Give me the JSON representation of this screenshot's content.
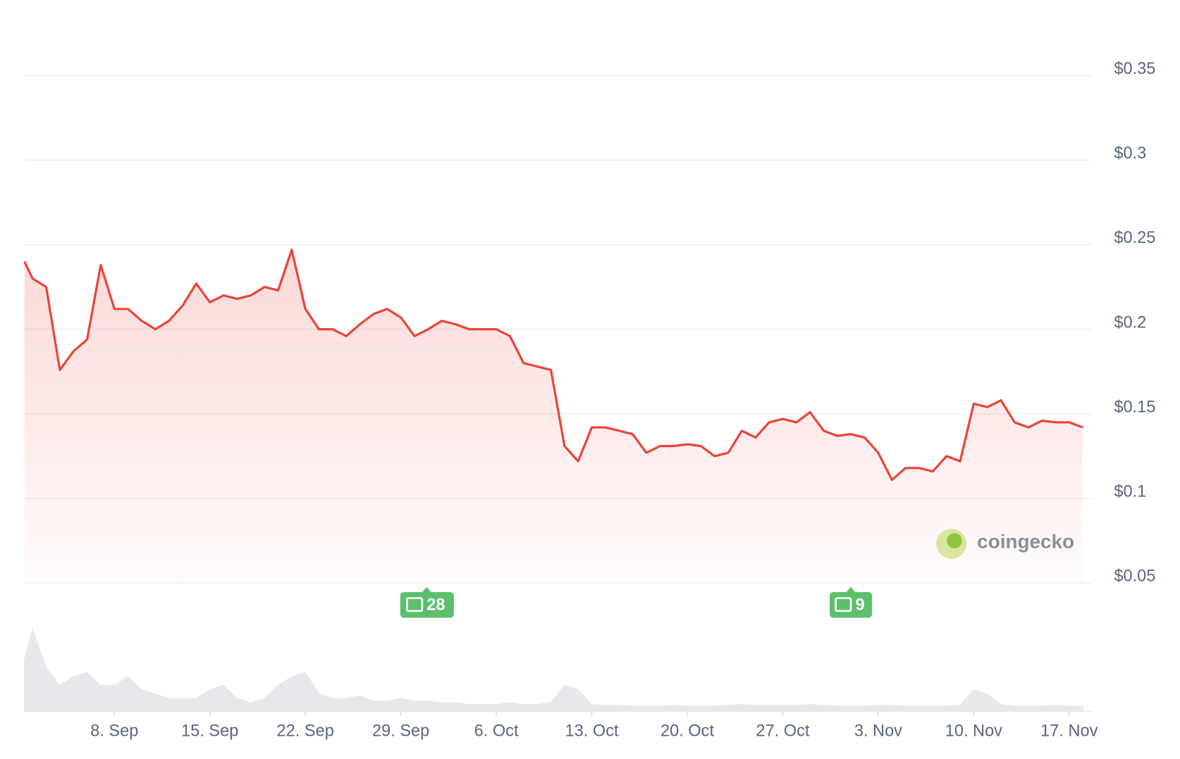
{
  "chart_data": {
    "type": "line",
    "categories": [
      null,
      null,
      null,
      null,
      null,
      null,
      null,
      "8. Sep",
      null,
      null,
      null,
      null,
      null,
      null,
      "15. Sep",
      null,
      null,
      null,
      null,
      null,
      null,
      "22. Sep",
      null,
      null,
      null,
      null,
      null,
      null,
      "29. Sep",
      null,
      null,
      null,
      null,
      null,
      null,
      "6. Oct",
      null,
      null,
      null,
      null,
      null,
      null,
      "13. Oct",
      null,
      null,
      null,
      null,
      null,
      null,
      "20. Oct",
      null,
      null,
      null,
      null,
      null,
      null,
      "27. Oct",
      null,
      null,
      null,
      null,
      null,
      null,
      "3. Nov",
      null,
      null,
      null,
      null,
      null,
      null,
      "10. Nov",
      null,
      null,
      null,
      null,
      null,
      null,
      "17. Nov",
      null
    ],
    "values": [
      0.24,
      0.23,
      0.225,
      0.176,
      0.187,
      0.194,
      0.238,
      0.212,
      0.212,
      0.205,
      0.2,
      0.205,
      0.214,
      0.227,
      0.216,
      0.22,
      0.218,
      0.22,
      0.225,
      0.223,
      0.247,
      0.212,
      0.2,
      0.2,
      0.196,
      0.203,
      0.209,
      0.212,
      0.207,
      0.196,
      0.2,
      0.205,
      0.203,
      0.2,
      0.2,
      0.2,
      0.196,
      0.18,
      0.178,
      0.176,
      0.131,
      0.122,
      0.142,
      0.142,
      0.14,
      0.138,
      0.127,
      0.131,
      0.131,
      0.132,
      0.131,
      0.125,
      0.127,
      0.14,
      0.136,
      0.145,
      0.147,
      0.145,
      0.151,
      0.14,
      0.137,
      0.138,
      0.136,
      0.127,
      0.111,
      0.118,
      0.118,
      0.116,
      0.125,
      0.122,
      0.156,
      0.154,
      0.158,
      0.145,
      0.142,
      0.146,
      0.145,
      0.145,
      0.142
    ],
    "color": "#e9453a",
    "volume": [
      0.6,
      0.95,
      0.5,
      0.3,
      0.4,
      0.45,
      0.3,
      0.3,
      0.4,
      0.25,
      0.2,
      0.15,
      0.15,
      0.15,
      0.25,
      0.3,
      0.15,
      0.1,
      0.15,
      0.3,
      0.4,
      0.45,
      0.2,
      0.15,
      0.15,
      0.18,
      0.12,
      0.12,
      0.15,
      0.12,
      0.12,
      0.1,
      0.1,
      0.08,
      0.08,
      0.08,
      0.1,
      0.08,
      0.08,
      0.1,
      0.3,
      0.25,
      0.08,
      0.07,
      0.07,
      0.06,
      0.06,
      0.06,
      0.07,
      0.06,
      0.06,
      0.06,
      0.07,
      0.08,
      0.07,
      0.07,
      0.07,
      0.07,
      0.08,
      0.07,
      0.06,
      0.06,
      0.06,
      0.07,
      0.07,
      0.06,
      0.06,
      0.06,
      0.06,
      0.07,
      0.25,
      0.2,
      0.08,
      0.06,
      0.06,
      0.06,
      0.07,
      0.06,
      0.06
    ],
    "volume_color": "#e6e8ec",
    "ylim": [
      0.05,
      0.35
    ],
    "yticks": [
      {
        "value": 0.05,
        "label": "$0.05"
      },
      {
        "value": 0.1,
        "label": "$0.1"
      },
      {
        "value": 0.15,
        "label": "$0.15"
      },
      {
        "value": 0.2,
        "label": "$0.2"
      },
      {
        "value": 0.25,
        "label": "$0.25"
      },
      {
        "value": 0.3,
        "label": "$0.3"
      },
      {
        "value": 0.35,
        "label": "$0.35"
      }
    ],
    "grid": true,
    "annotations": [
      "28",
      "9"
    ],
    "watermark": "coingecko"
  }
}
